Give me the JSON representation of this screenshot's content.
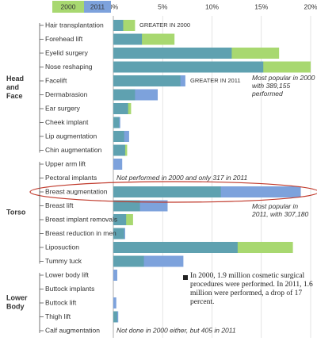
{
  "chart_data": {
    "type": "overlap-bar",
    "categories": [
      "Hair transplantation",
      "Forehead lift",
      "Eyelid surgery",
      "Nose reshaping",
      "Facelift",
      "Dermabrasion",
      "Ear surgery",
      "Cheek implant",
      "Lip augmentation",
      "Chin augmentation",
      "Upper arm lift",
      "Pectoral implants",
      "Breast augmentation",
      "Breast lift",
      "Breast implant removals",
      "Breast reduction in men",
      "Liposuction",
      "Tummy tuck",
      "Lower body lift",
      "Buttock implants",
      "Buttock lift",
      "Thigh lift",
      "Calf augmentation"
    ],
    "series": [
      {
        "name": "2000",
        "color": "#a8d870",
        "values": [
          2.2,
          6.2,
          16.8,
          20.0,
          6.8,
          2.2,
          1.8,
          0.6,
          1.1,
          1.4,
          0,
          0,
          10.9,
          2.7,
          2.0,
          1.1,
          18.2,
          3.1,
          0,
          0,
          0,
          0.4,
          0
        ]
      },
      {
        "name": "2011",
        "color": "#7da2dc",
        "values": [
          1.0,
          2.9,
          12.0,
          15.2,
          7.3,
          4.5,
          1.5,
          0.7,
          1.6,
          1.2,
          0.9,
          0,
          19.0,
          5.5,
          1.3,
          1.2,
          12.6,
          7.1,
          0.4,
          0,
          0.3,
          0.5,
          0
        ]
      }
    ],
    "overlap_color": "#5fa1b0",
    "groups": [
      "Head and Face",
      "Torso",
      "Lower Body"
    ],
    "xlim": [
      0,
      20
    ],
    "xticks": [
      {
        "value": 0,
        "label": "0%"
      },
      {
        "value": 5,
        "label": "5%"
      },
      {
        "value": 10,
        "label": "10%"
      },
      {
        "value": 15,
        "label": "15%"
      },
      {
        "value": 20,
        "label": "20%"
      }
    ],
    "grid": true,
    "annotations": [
      "GREATER IN 2000",
      "GREATER IN 2011",
      "Most popular in 2000 with 389,155 performed",
      "Not performed in 2000 and only 317 in 2011",
      "Most popular in 2011, with 307,180",
      "Not done in 2000 either, but 405 in 2011"
    ],
    "note": "In 2000, 1.9 million cosmetic surgical procedures were performed. In 2011, 1.6 million were performed, a drop of 17 percent."
  }
}
